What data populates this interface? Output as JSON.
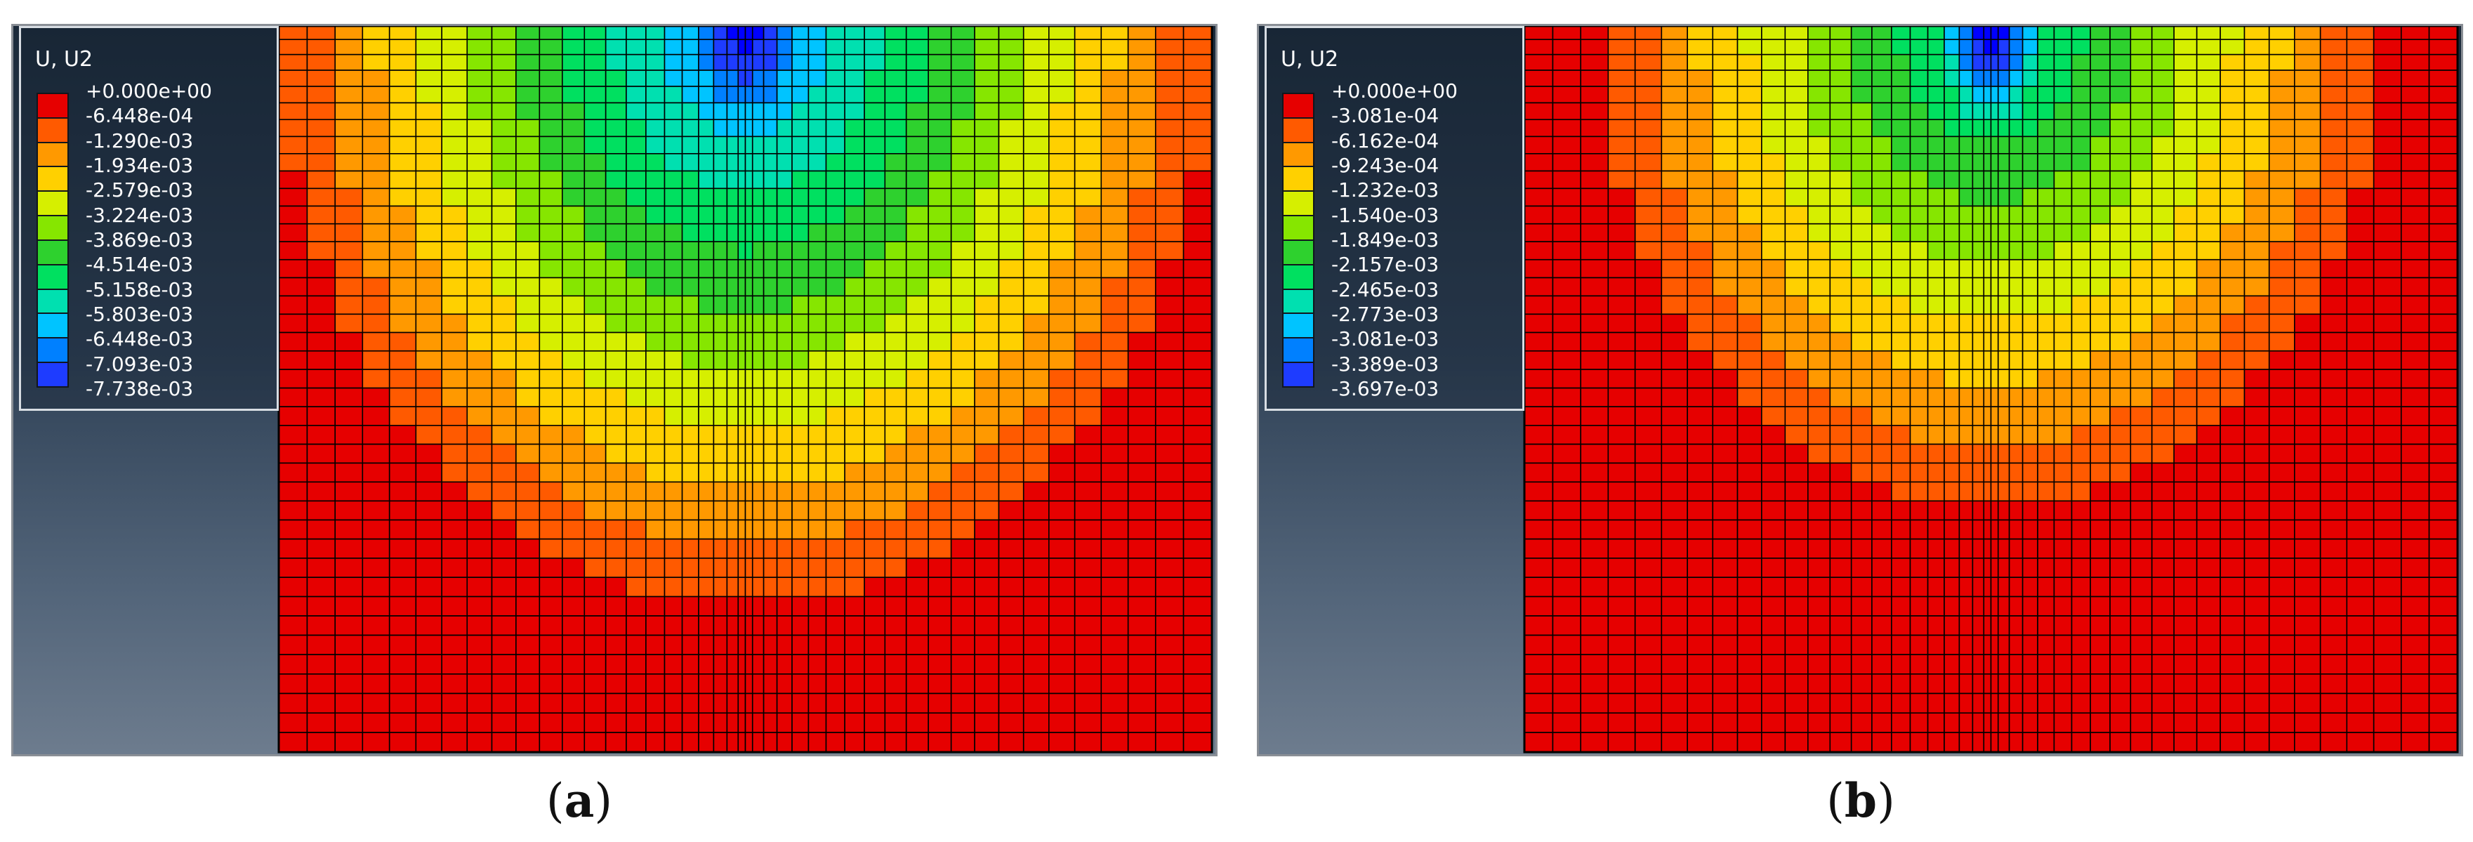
{
  "figure": {
    "panels": [
      {
        "id": "a",
        "legend": {
          "title": "U, U2",
          "labels": [
            "+0.000e+00",
            "-6.448e-04",
            "-1.290e-03",
            "-1.934e-03",
            "-2.579e-03",
            "-3.224e-03",
            "-3.869e-03",
            "-4.514e-03",
            "-5.158e-03",
            "-5.803e-03",
            "-6.448e-03",
            "-7.093e-03",
            "-7.738e-03"
          ],
          "colors": [
            "#e60000",
            "#ff5a00",
            "#ff9900",
            "#ffd000",
            "#d6ef00",
            "#86e600",
            "#2ed12e",
            "#00e060",
            "#00e0b0",
            "#00c4ff",
            "#0080ff",
            "#1e3cff",
            "#0000ff"
          ]
        },
        "caption_letter": "a",
        "field": {
          "depth": 0.62,
          "ring_scale": 1.0,
          "max_bowl": 0.86
        }
      },
      {
        "id": "b",
        "legend": {
          "title": "U, U2",
          "labels": [
            "+0.000e+00",
            "-3.081e-04",
            "-6.162e-04",
            "-9.243e-04",
            "-1.232e-03",
            "-1.540e-03",
            "-1.849e-03",
            "-2.157e-03",
            "-2.465e-03",
            "-2.773e-03",
            "-3.081e-03",
            "-3.389e-03",
            "-3.697e-03"
          ],
          "colors": [
            "#e60000",
            "#ff5a00",
            "#ff9900",
            "#ffd000",
            "#d6ef00",
            "#86e600",
            "#2ed12e",
            "#00e060",
            "#00e0b0",
            "#00c4ff",
            "#0080ff",
            "#1e3cff",
            "#0000ff"
          ]
        },
        "caption_letter": "b",
        "field": {
          "depth": 0.52,
          "ring_scale": 0.85,
          "max_bowl": 0.7
        }
      }
    ]
  }
}
